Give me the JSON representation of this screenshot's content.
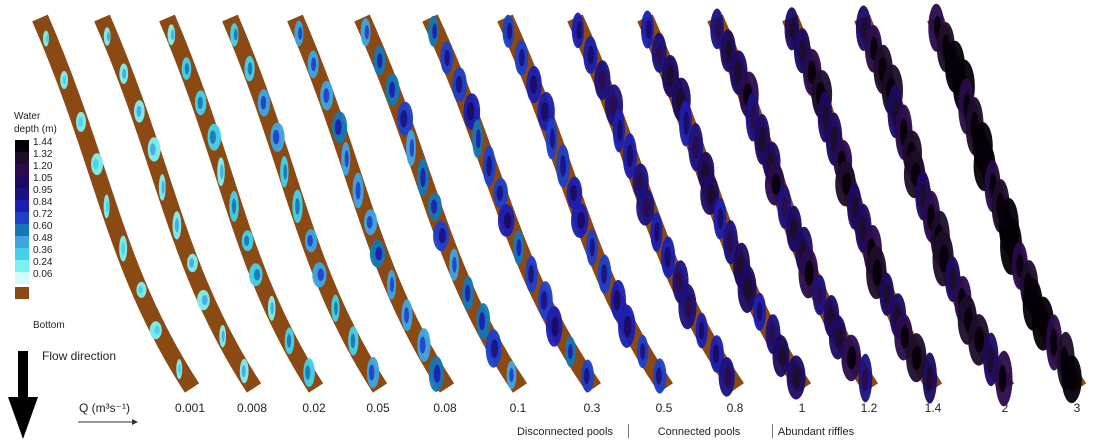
{
  "legend": {
    "title": [
      "Water",
      "depth (m)"
    ],
    "depth_classes": [
      "1.44",
      "1.32",
      "1.20",
      "1.05",
      "0.95",
      "0.84",
      "0.72",
      "0.60",
      "0.48",
      "0.36",
      "0.24",
      "0.06"
    ],
    "depth_colors": [
      "#050008",
      "#1c0d2a",
      "#2b0b4d",
      "#1b0a62",
      "#1a1280",
      "#1a1fb0",
      "#1e3fc8",
      "#1577b4",
      "#3ea7e2",
      "#44d2ea",
      "#7ff0f2",
      "#d2fafa"
    ],
    "bottom_label": "Bottom",
    "bottom_color": "#8b4a13"
  },
  "flow_direction_label": "Flow direction",
  "discharge_axis_label": "Q (m³s⁻¹)",
  "discharges": [
    "0.001",
    "0.008",
    "0.02",
    "0.05",
    "0.08",
    "0.1",
    "0.3",
    "0.5",
    "0.8",
    "1",
    "1.2",
    "1.4",
    "2",
    "3"
  ],
  "regimes": [
    "Disconnected pools",
    "Connected pools",
    "Abundant riffles"
  ]
}
